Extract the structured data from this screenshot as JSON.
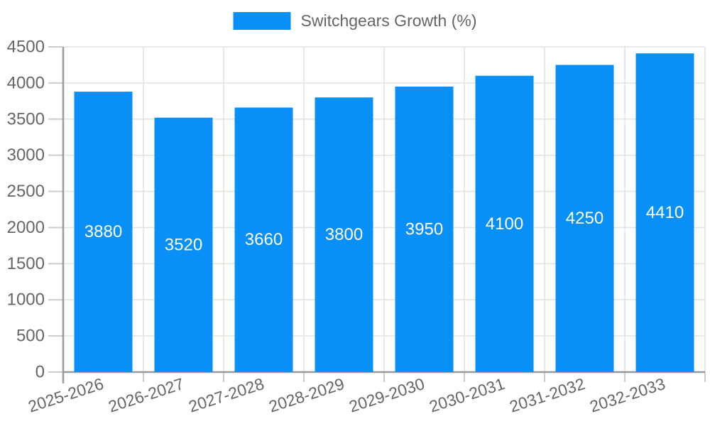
{
  "legend": {
    "label": "Switchgears Growth (%)"
  },
  "colors": {
    "bar": "#0890F8",
    "grid": "#e2e2e2",
    "axis": "#9a9a9a",
    "tick": "#cccccc",
    "text": "#666666",
    "bar_label": "#ffffff",
    "background": "#ffffff"
  },
  "chart_data": {
    "type": "bar",
    "title": "",
    "xlabel": "",
    "ylabel": "",
    "categories": [
      "2025-2026",
      "2026-2027",
      "2027-2028",
      "2028-2029",
      "2029-2030",
      "2030-2031",
      "2031-2032",
      "2032-2033"
    ],
    "series": [
      {
        "name": "Switchgears Growth (%)",
        "values": [
          3880,
          3520,
          3660,
          3800,
          3950,
          4100,
          4250,
          4410
        ]
      }
    ],
    "ylim": [
      0,
      4500
    ],
    "ytick_step": 500,
    "yticks": [
      0,
      500,
      1000,
      1500,
      2000,
      2500,
      3000,
      3500,
      4000,
      4500
    ],
    "grid": true,
    "legend_position": "top-center",
    "bar_value_labels": "inside-center",
    "x_label_rotation_deg": -18
  }
}
